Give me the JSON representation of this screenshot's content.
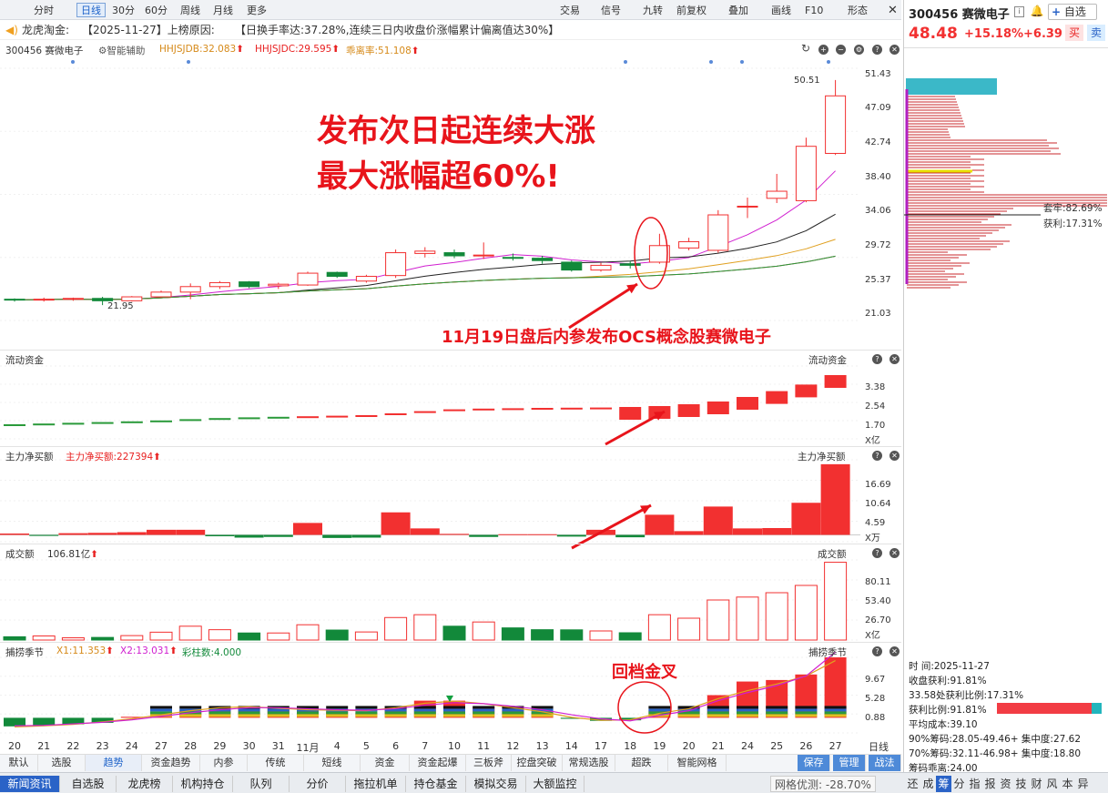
{
  "toolbar": {
    "left_items": [
      "分时",
      "日线",
      "30分",
      "60分",
      "周线",
      "月线",
      "更多"
    ],
    "right_items": [
      "交易",
      "信号",
      "九转",
      "前复权",
      "叠加",
      "画线",
      "F10",
      "形态"
    ]
  },
  "reason": {
    "prefix": "龙虎淘金:",
    "date": "【2025-11-27】上榜原因:",
    "text": "【日换手率达:37.28%,连续三日内收盘价涨幅累计偏离值达30%】"
  },
  "main_panel": {
    "stock": "300456 赛微电子",
    "assist": "智能辅助",
    "ind1": "HHJSJDB:32.083",
    "ind2": "HHJSJDC:29.595",
    "ind3": "乖离率:51.108",
    "high_label": "50.51",
    "low_label": "21.95",
    "yticks": [
      "51.43",
      "47.09",
      "42.74",
      "38.40",
      "34.06",
      "29.72",
      "25.37",
      "21.03"
    ],
    "annotation_title1": "发布次日起连续大涨",
    "annotation_title2": "最大涨幅超60%!",
    "annotation_note": "11月19日盘后内参发布OCS概念股赛微电子"
  },
  "flow_panel": {
    "title": "流动资金",
    "title_right": "流动资金",
    "yticks": [
      "3.38",
      "2.54",
      "1.70"
    ],
    "unit": "X亿"
  },
  "net_panel": {
    "title": "主力净买额",
    "value": "主力净买额:227394",
    "title_right": "主力净买额",
    "yticks": [
      "16.69",
      "10.64",
      "4.59"
    ],
    "unit": "X万"
  },
  "amount_panel": {
    "title": "成交额",
    "value": "106.81亿",
    "title_right": "成交额",
    "yticks": [
      "80.11",
      "53.40",
      "26.70"
    ],
    "unit": "X亿"
  },
  "season_panel": {
    "title": "捕捞季节",
    "x1": "X1:11.353",
    "x2": "X2:13.031",
    "bars": "彩柱数:4.000",
    "title_right": "捕捞季节",
    "yticks": [
      "9.67",
      "5.28",
      "0.88"
    ],
    "annotation": "回档金叉"
  },
  "xticks": [
    "20",
    "21",
    "22",
    "23",
    "24",
    "27",
    "28",
    "29",
    "30",
    "31",
    "11月",
    "4",
    "5",
    "6",
    "7",
    "10",
    "11",
    "12",
    "13",
    "14",
    "17",
    "18",
    "19",
    "20",
    "21",
    "24",
    "25",
    "26",
    "27"
  ],
  "bottom_tabs": [
    "默认",
    "选股",
    "趋势",
    "资金趋势",
    "内参",
    "传统",
    "短线",
    "资金",
    "资金起爆",
    "三板斧",
    "控盘突破",
    "常规选股",
    "超跌",
    "智能网格"
  ],
  "bottom_tab_active": "趋势",
  "bottom_right": {
    "save": "保存",
    "manage": "管理",
    "war": "战法",
    "period": "日线"
  },
  "status_bar": [
    "新闻资讯",
    "自选股",
    "龙虎榜",
    "机构持仓",
    "队列",
    "分价",
    "拖拉机单",
    "持仓基金",
    "模拟交易",
    "大额监控"
  ],
  "grid_opt": "网格优测: -28.70%",
  "right_tabs": [
    "还",
    "成",
    "筹",
    "分",
    "指",
    "报",
    "资",
    "技",
    "财",
    "风",
    "本",
    "异"
  ],
  "right_tab_active": "筹",
  "quote": {
    "code_name": "300456 赛微电子",
    "add_label": "自选",
    "price": "48.48",
    "change_pct": "+15.18%",
    "change": "+6.39",
    "buy": "买",
    "sell": "卖"
  },
  "chip": {
    "trap_label": "套牢:82.69%",
    "profit_label": "获利:17.31%"
  },
  "chip_info": {
    "time": "时     间:2025-11-27",
    "close_profit": "收盘获利:91.81%",
    "profit33": "33.58处获利比例:17.31%",
    "profit_ratio": "获利比例:91.81%",
    "avg_cost": "平均成本:39.10",
    "c90": "90%筹码:28.05-49.46+ 集中度:27.62",
    "c70": "70%筹码:32.11-46.98+ 集中度:18.80",
    "deviation": "筹码乖离:24.00"
  },
  "colors": {
    "up": "#f23030",
    "down": "#12893a",
    "accent": "#2a63c7",
    "annot": "#e8141b"
  },
  "chart_data": {
    "type": "candlestick",
    "dates": [
      "20",
      "21",
      "22",
      "23",
      "24",
      "27",
      "28",
      "29",
      "30",
      "31",
      "11月",
      "4",
      "5",
      "6",
      "7",
      "10",
      "11",
      "12",
      "13",
      "14",
      "17",
      "18",
      "19",
      "20",
      "21",
      "24",
      "25",
      "26",
      "27"
    ],
    "ohlc": [
      [
        22.7,
        22.8,
        22.4,
        22.6
      ],
      [
        22.6,
        22.9,
        22.4,
        22.7
      ],
      [
        22.7,
        22.9,
        22.5,
        22.8
      ],
      [
        22.8,
        23.0,
        21.95,
        22.5
      ],
      [
        22.5,
        23.1,
        22.4,
        23.0
      ],
      [
        23.0,
        23.8,
        22.9,
        23.6
      ],
      [
        23.6,
        24.7,
        22.7,
        24.3
      ],
      [
        24.3,
        25.0,
        24.0,
        24.8
      ],
      [
        24.9,
        25.0,
        24.1,
        24.3
      ],
      [
        24.4,
        24.8,
        24.0,
        24.6
      ],
      [
        24.5,
        26.2,
        24.4,
        26.0
      ],
      [
        26.1,
        26.2,
        25.4,
        25.6
      ],
      [
        25.0,
        25.8,
        24.8,
        25.6
      ],
      [
        25.7,
        29.0,
        25.4,
        28.6
      ],
      [
        28.5,
        29.3,
        28.0,
        28.8
      ],
      [
        28.6,
        29.0,
        27.9,
        28.2
      ],
      [
        28.3,
        29.9,
        27.8,
        28.3
      ],
      [
        28.0,
        28.5,
        27.6,
        27.9
      ],
      [
        27.9,
        28.2,
        27.2,
        27.6
      ],
      [
        27.4,
        27.6,
        26.2,
        26.4
      ],
      [
        26.4,
        27.3,
        26.2,
        27.0
      ],
      [
        27.2,
        27.5,
        26.6,
        27.0
      ],
      [
        27.4,
        31.0,
        27.2,
        29.5
      ],
      [
        29.2,
        30.5,
        28.9,
        30.0
      ],
      [
        28.9,
        34.0,
        28.6,
        33.4
      ],
      [
        34.5,
        35.6,
        33.0,
        34.5
      ],
      [
        35.5,
        38.6,
        34.9,
        36.4
      ],
      [
        35.2,
        43.2,
        35.0,
        42.1
      ],
      [
        41.2,
        50.51,
        41.0,
        48.5
      ]
    ],
    "ylim": [
      20,
      52
    ],
    "flow": [
      0.8,
      0.84,
      0.88,
      0.92,
      0.96,
      1.01,
      1.08,
      1.14,
      1.18,
      1.21,
      1.24,
      1.27,
      1.3,
      1.4,
      1.52,
      1.62,
      1.66,
      1.68,
      1.7,
      1.71,
      1.72,
      1.75,
      1.8,
      1.9,
      2.05,
      2.3,
      2.62,
      2.98,
      3.5
    ],
    "flow_ylim": [
      0,
      4.0
    ],
    "net": [
      0.4,
      -0.3,
      0.5,
      0.6,
      0.8,
      1.5,
      1.5,
      -0.4,
      -0.8,
      -0.6,
      3.5,
      -0.9,
      -0.8,
      6.6,
      1.9,
      0.3,
      -0.6,
      0.2,
      0.2,
      -0.5,
      1.5,
      -0.7,
      5.9,
      1.1,
      8.3,
      1.9,
      2.0,
      9.4,
      20.7
    ],
    "net_ylim": [
      -2,
      22
    ],
    "amount": [
      4.5,
      5.6,
      3.1,
      3.6,
      6.1,
      10.8,
      19.0,
      14.2,
      9.7,
      9.7,
      21.0,
      13.7,
      11.1,
      30.9,
      34.8,
      19.0,
      24.8,
      16.7,
      14.2,
      14.0,
      12.5,
      10.0,
      34.8,
      30.0,
      55.0,
      59.0,
      65.0,
      75.0,
      106.81
    ],
    "amount_ylim": [
      0,
      110
    ],
    "season": [
      -1.7,
      -1.5,
      -1.3,
      -1.0,
      0.2,
      0.8,
      1.6,
      2.3,
      2.3,
      1.8,
      1.5,
      1.3,
      1.0,
      2.3,
      3.4,
      3.4,
      2.2,
      1.5,
      1.0,
      -0.2,
      -0.6,
      -0.5,
      1.5,
      2.0,
      4.5,
      7.2,
      7.5,
      8.6,
      12.0
    ],
    "season_x1": [
      -1.8,
      -1.6,
      -1.3,
      -0.8,
      -0.2,
      0.6,
      1.4,
      2.0,
      2.2,
      1.9,
      1.6,
      1.5,
      1.4,
      2.0,
      2.9,
      3.3,
      2.8,
      2.0,
      1.2,
      0.1,
      -0.5,
      -0.4,
      0.9,
      1.8,
      3.8,
      5.4,
      6.7,
      8.3,
      11.353
    ],
    "season_x2": [
      -1.6,
      -1.5,
      -1.2,
      -0.9,
      -0.4,
      0.3,
      1.0,
      1.6,
      2.0,
      2.0,
      1.8,
      1.6,
      1.5,
      1.8,
      2.5,
      3.0,
      2.8,
      2.3,
      1.6,
      0.6,
      -0.2,
      -0.6,
      0.5,
      1.4,
      3.4,
      5.0,
      6.4,
      8.3,
      13.031
    ],
    "season_ylim": [
      -3,
      12
    ]
  }
}
